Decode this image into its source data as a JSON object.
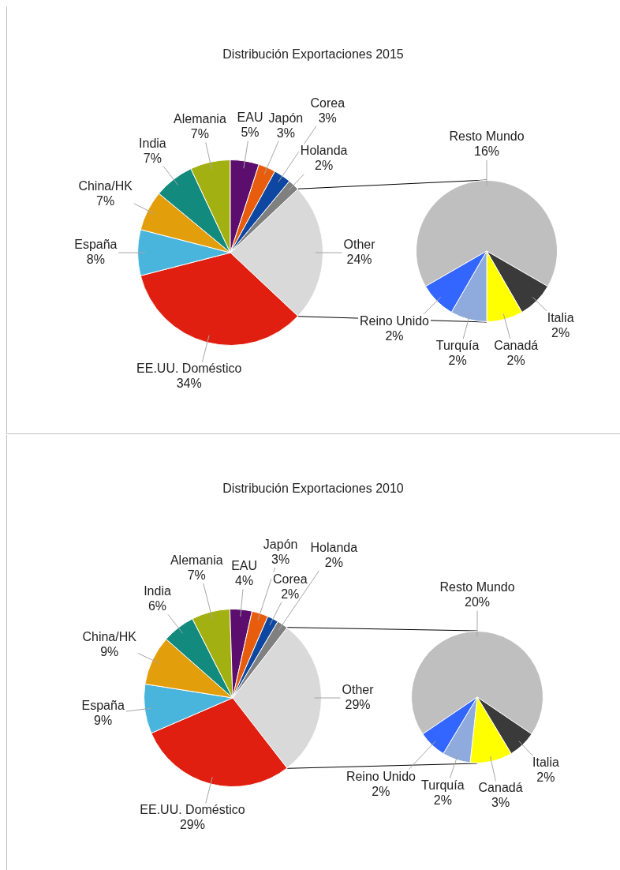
{
  "chart_data": [
    {
      "type": "pie",
      "title": "Distribución Exportaciones 2015",
      "categories": [
        "Other",
        "EE.UU. Doméstico",
        "España",
        "China/HK",
        "India",
        "Alemania",
        "EAU",
        "Japón",
        "Corea",
        "Holanda"
      ],
      "values": [
        24,
        34,
        8,
        7,
        7,
        7,
        5,
        3,
        3,
        2
      ],
      "value_labels": [
        "24%",
        "34%",
        "8%",
        "7%",
        "7%",
        "7%",
        "5%",
        "3%",
        "3%",
        "2%"
      ],
      "colors": [
        "#d9d9d9",
        "#e01f10",
        "#4ab5dc",
        "#e39e0b",
        "#128a7d",
        "#a3b012",
        "#5c0e6e",
        "#e85d0d",
        "#0d47a1",
        "#808080"
      ]
    },
    {
      "type": "pie",
      "categories": [
        "Resto Mundo",
        "Italia",
        "Canadá",
        "Turquía",
        "Reino Unido"
      ],
      "values": [
        16,
        2,
        2,
        2,
        2
      ],
      "value_labels": [
        "16%",
        "2%",
        "2%",
        "2%",
        "2%"
      ],
      "colors": [
        "#bfbfbf",
        "#3a3a3a",
        "#ffff00",
        "#8faadc",
        "#3366ff"
      ]
    },
    {
      "type": "pie",
      "title": "Distribución Exportaciones 2010",
      "categories": [
        "Other",
        "EE.UU. Doméstico",
        "España",
        "China/HK",
        "India",
        "Alemania",
        "EAU",
        "Japón",
        "Corea",
        "Holanda"
      ],
      "values": [
        29,
        29,
        9,
        9,
        6,
        7,
        4,
        3,
        2,
        2
      ],
      "value_labels": [
        "29%",
        "29%",
        "9%",
        "9%",
        "6%",
        "7%",
        "4%",
        "3%",
        "2%",
        "2%"
      ],
      "colors": [
        "#d9d9d9",
        "#e01f10",
        "#4ab5dc",
        "#e39e0b",
        "#128a7d",
        "#a3b012",
        "#5c0e6e",
        "#e85d0d",
        "#0d47a1",
        "#808080"
      ]
    },
    {
      "type": "pie",
      "categories": [
        "Resto Mundo",
        "Italia",
        "Canadá",
        "Turquía",
        "Reino Unido"
      ],
      "values": [
        20,
        2,
        3,
        2,
        2
      ],
      "value_labels": [
        "20%",
        "2%",
        "3%",
        "2%",
        "2%"
      ],
      "colors": [
        "#bfbfbf",
        "#3a3a3a",
        "#ffff00",
        "#8faadc",
        "#3366ff"
      ]
    }
  ]
}
